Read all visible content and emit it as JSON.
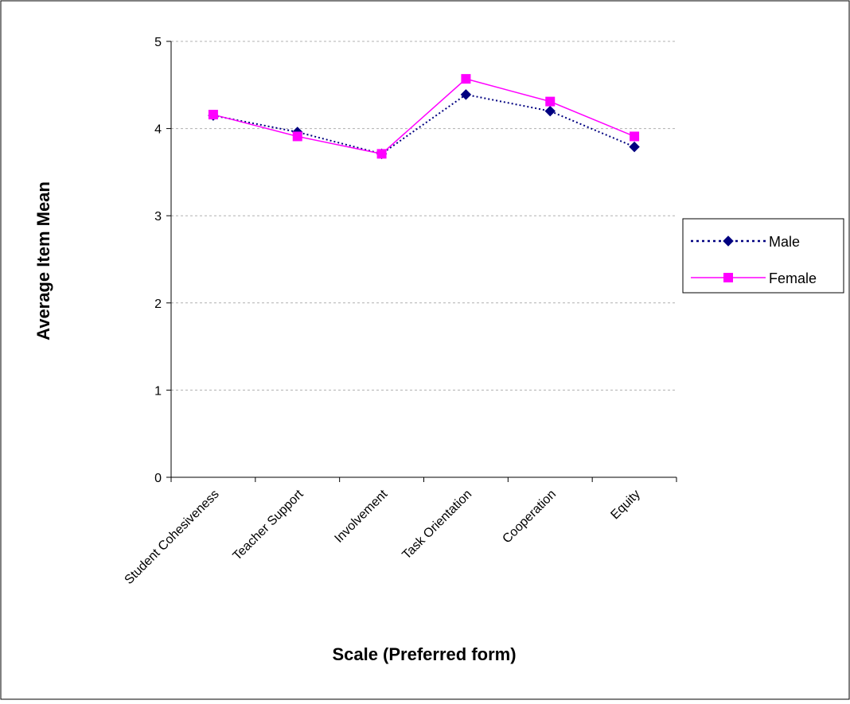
{
  "chart_data": {
    "type": "line",
    "categories": [
      "Student Cohesiveness",
      "Teacher Support",
      "Involvement",
      "Task Orientation",
      "Cooperation",
      "Equity"
    ],
    "series": [
      {
        "name": "Male",
        "values": [
          4.15,
          3.96,
          3.71,
          4.39,
          4.2,
          3.79
        ],
        "color": "#000080",
        "line_style": "dotted",
        "marker": "diamond"
      },
      {
        "name": "Female",
        "values": [
          4.16,
          3.91,
          3.71,
          4.57,
          4.31,
          3.91
        ],
        "color": "#FF00FF",
        "line_style": "solid",
        "marker": "square"
      }
    ],
    "title": "",
    "xlabel": "Scale (Preferred form)",
    "ylabel": "Average Item Mean",
    "ylim": [
      0,
      5
    ],
    "yticks": [
      "0",
      "1",
      "2",
      "3",
      "4",
      "5"
    ],
    "grid": true,
    "legend_position": "right"
  }
}
